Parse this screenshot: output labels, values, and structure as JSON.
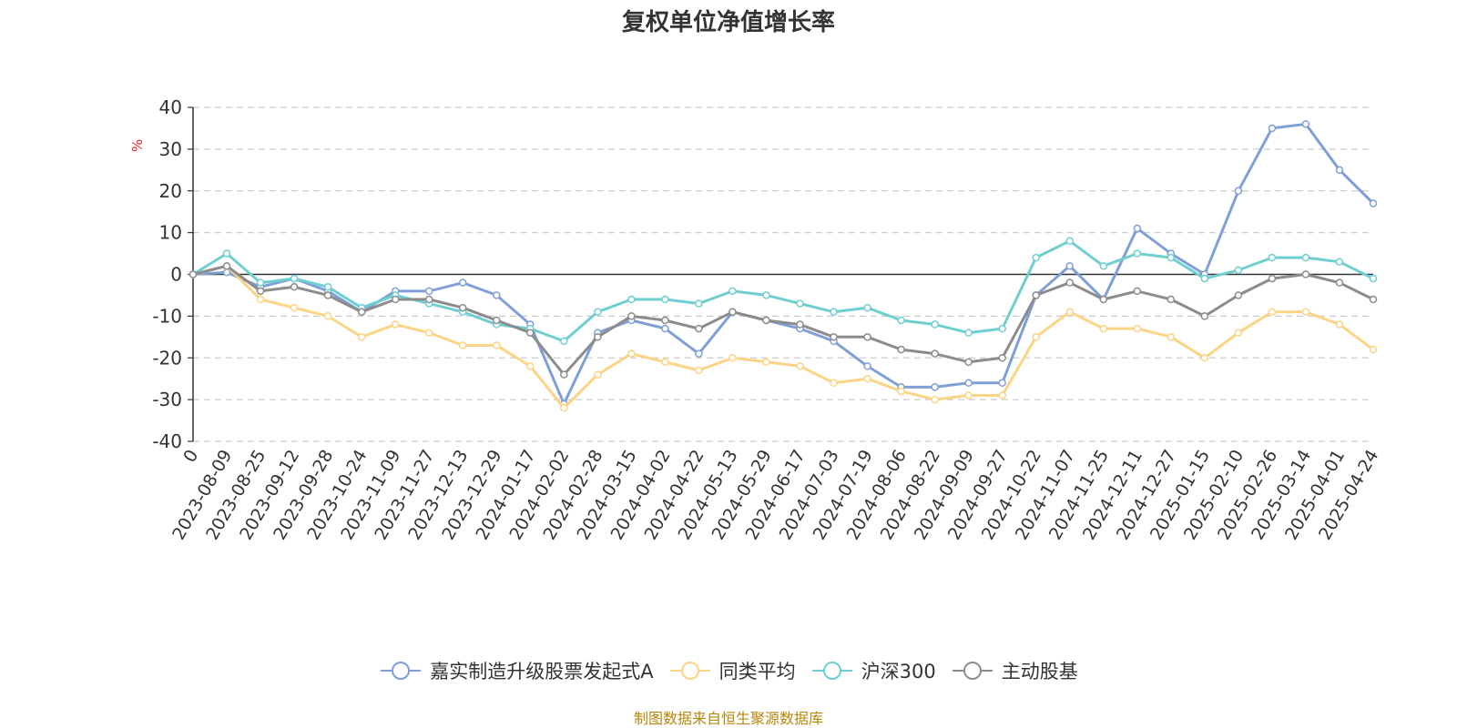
{
  "chart_data": {
    "type": "line",
    "title": "复权单位净值增长率",
    "ylabel": "%",
    "ylim": [
      -40,
      40
    ],
    "yticks": [
      40,
      30,
      20,
      10,
      0,
      -10,
      -20,
      -30,
      -40
    ],
    "x_tick_labels": [
      "0",
      "2023-08-09",
      "2023-08-25",
      "2023-09-12",
      "2023-09-28",
      "2023-10-24",
      "2023-11-09",
      "2023-11-27",
      "2023-12-13",
      "2023-12-29",
      "2024-01-17",
      "2024-02-02",
      "2024-02-28",
      "2024-03-15",
      "2024-04-02",
      "2024-04-22",
      "2024-05-13",
      "2024-05-29",
      "2024-06-17",
      "2024-07-03",
      "2024-07-19",
      "2024-08-06",
      "2024-08-22",
      "2024-09-09",
      "2024-09-27",
      "2024-10-22",
      "2024-11-07",
      "2024-11-25",
      "2024-12-11",
      "2024-12-27",
      "2025-01-15",
      "2025-02-10",
      "2025-02-26",
      "2025-03-14",
      "2025-04-01",
      "2025-04-24"
    ],
    "x": [
      "0",
      "2023-08-09",
      "2023-08-25",
      "2023-09-12",
      "2023-09-28",
      "2023-10-24",
      "2023-11-09",
      "2023-11-27",
      "2023-12-13",
      "2023-12-29",
      "2024-01-17",
      "2024-02-02",
      "2024-02-28",
      "2024-03-15",
      "2024-04-02",
      "2024-04-22",
      "2024-05-13",
      "2024-05-29",
      "2024-06-17",
      "2024-07-03",
      "2024-07-19",
      "2024-08-06",
      "2024-08-22",
      "2024-09-09",
      "2024-09-27",
      "2024-10-22",
      "2024-11-07",
      "2024-11-25",
      "2024-12-11",
      "2024-12-27",
      "2025-01-15",
      "2025-02-10",
      "2025-02-26",
      "2025-03-14",
      "2025-04-01",
      "2025-04-24"
    ],
    "grid": "horizontal-dashed",
    "legend_position": "bottom",
    "series": [
      {
        "name": "嘉实制造升级股票发起式A",
        "color": "#7f9fd6",
        "values": [
          0,
          0.5,
          -3,
          -1,
          -4,
          -9,
          -4,
          -4,
          -2,
          -5,
          -12,
          -31,
          -14,
          -11,
          -13,
          -19,
          -9,
          -11,
          -13,
          -16,
          -22,
          -27,
          -27,
          -26,
          -26,
          -5,
          2,
          -6,
          11,
          5,
          0,
          20,
          35,
          36,
          25,
          17
        ]
      },
      {
        "name": "同类平均",
        "color": "#fcd485",
        "values": [
          0,
          2,
          -6,
          -8,
          -10,
          -15,
          -12,
          -14,
          -17,
          -17,
          -22,
          -32,
          -24,
          -19,
          -21,
          -23,
          -20,
          -21,
          -22,
          -26,
          -25,
          -28,
          -30,
          -29,
          -29,
          -15,
          -9,
          -13,
          -13,
          -15,
          -20,
          -14,
          -9,
          -9,
          -12,
          -18
        ]
      },
      {
        "name": "沪深300",
        "color": "#6fcfd0",
        "values": [
          0,
          5,
          -2,
          -1,
          -3,
          -8,
          -5,
          -7,
          -9,
          -12,
          -13,
          -16,
          -9,
          -6,
          -6,
          -7,
          -4,
          -5,
          -7,
          -9,
          -8,
          -11,
          -12,
          -14,
          -13,
          4,
          8,
          2,
          5,
          4,
          -1,
          1,
          4,
          4,
          3,
          -1
        ]
      },
      {
        "name": "主动股基",
        "color": "#8c8c8c",
        "values": [
          0,
          2,
          -4,
          -3,
          -5,
          -9,
          -6,
          -6,
          -8,
          -11,
          -14,
          -24,
          -15,
          -10,
          -11,
          -13,
          -9,
          -11,
          -12,
          -15,
          -15,
          -18,
          -19,
          -21,
          -20,
          -5,
          -2,
          -6,
          -4,
          -6,
          -10,
          -5,
          -1,
          0,
          -2,
          -6
        ]
      }
    ]
  },
  "footer": {
    "source_note": "制图数据来自恒生聚源数据库"
  }
}
